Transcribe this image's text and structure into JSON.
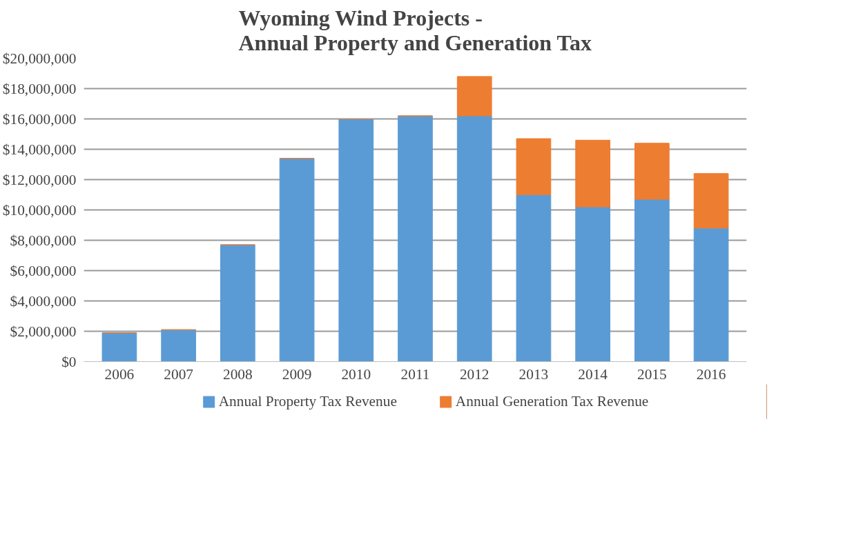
{
  "chart_data": {
    "type": "bar",
    "title": "Wyoming Wind Projects -\nAnnual Property and Generation Tax",
    "stacked": true,
    "categories": [
      "2006",
      "2007",
      "2008",
      "2009",
      "2010",
      "2011",
      "2012",
      "2013",
      "2014",
      "2015",
      "2016"
    ],
    "series": [
      {
        "name": "Annual Property Tax Revenue",
        "color": "#5b9bd5",
        "values": [
          1900000,
          2100000,
          7700000,
          13400000,
          16000000,
          16200000,
          16200000,
          11000000,
          10200000,
          10700000,
          8800000
        ]
      },
      {
        "name": "Annual Generation Tax Revenue",
        "color": "#ed7d31",
        "values": [
          0,
          0,
          0,
          0,
          0,
          0,
          2600000,
          3700000,
          4400000,
          3700000,
          3600000
        ]
      }
    ],
    "ylim": [
      0,
      20000000
    ],
    "yticks": [
      {
        "value": 0,
        "label": "$0"
      },
      {
        "value": 2000000,
        "label": "$2,000,000"
      },
      {
        "value": 4000000,
        "label": "$4,000,000"
      },
      {
        "value": 6000000,
        "label": "$6,000,000"
      },
      {
        "value": 8000000,
        "label": "$8,000,000"
      },
      {
        "value": 10000000,
        "label": "$10,000,000"
      },
      {
        "value": 12000000,
        "label": "$12,000,000"
      },
      {
        "value": 14000000,
        "label": "$14,000,000"
      },
      {
        "value": 16000000,
        "label": "$16,000,000"
      },
      {
        "value": 18000000,
        "label": "$18,000,000"
      },
      {
        "value": 20000000,
        "label": "$20,000,000"
      }
    ],
    "grid": "y",
    "legend": "bottom"
  }
}
